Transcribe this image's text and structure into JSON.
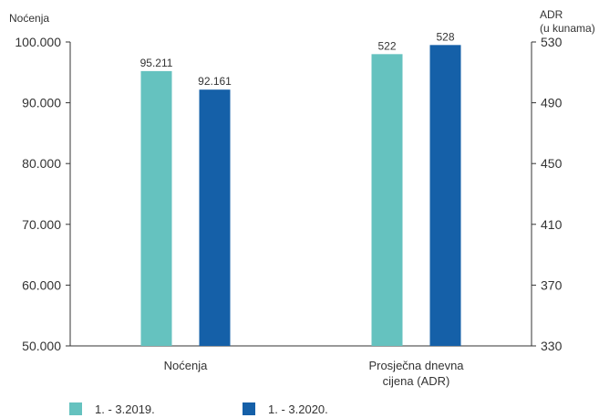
{
  "chart_data": {
    "type": "bar",
    "categories": [
      "Noćenja",
      "Prosječna dnevna cijena (ADR)"
    ],
    "series": [
      {
        "name": "1. - 3.2019.",
        "color": "#65c2bf",
        "values": [
          95211,
          522
        ],
        "labels": [
          "95.211",
          "522"
        ]
      },
      {
        "name": "1. - 3.2020.",
        "color": "#1560a8",
        "values": [
          92161,
          528
        ],
        "labels": [
          "92.161",
          "528"
        ]
      }
    ],
    "left_axis": {
      "title": "Noćenja",
      "ylim": [
        50000,
        100000
      ],
      "ticks": [
        50000,
        60000,
        70000,
        80000,
        90000,
        100000
      ],
      "tick_labels": [
        "50.000",
        "60.000",
        "70.000",
        "80.000",
        "90.000",
        "100.000"
      ],
      "applies_to_category": "Noćenja"
    },
    "right_axis": {
      "title_line1": "ADR",
      "title_line2": "(u kunama)",
      "ylim": [
        330,
        530
      ],
      "ticks": [
        330,
        370,
        410,
        450,
        490,
        530
      ],
      "tick_labels": [
        "330",
        "370",
        "410",
        "450",
        "490",
        "530"
      ],
      "applies_to_category": "Prosječna dnevna cijena (ADR)"
    },
    "category_label_lines": [
      [
        "Noćenja"
      ],
      [
        "Prosječna dnevna",
        "cijena (ADR)"
      ]
    ],
    "legend_position": "bottom-left",
    "grid": false
  }
}
